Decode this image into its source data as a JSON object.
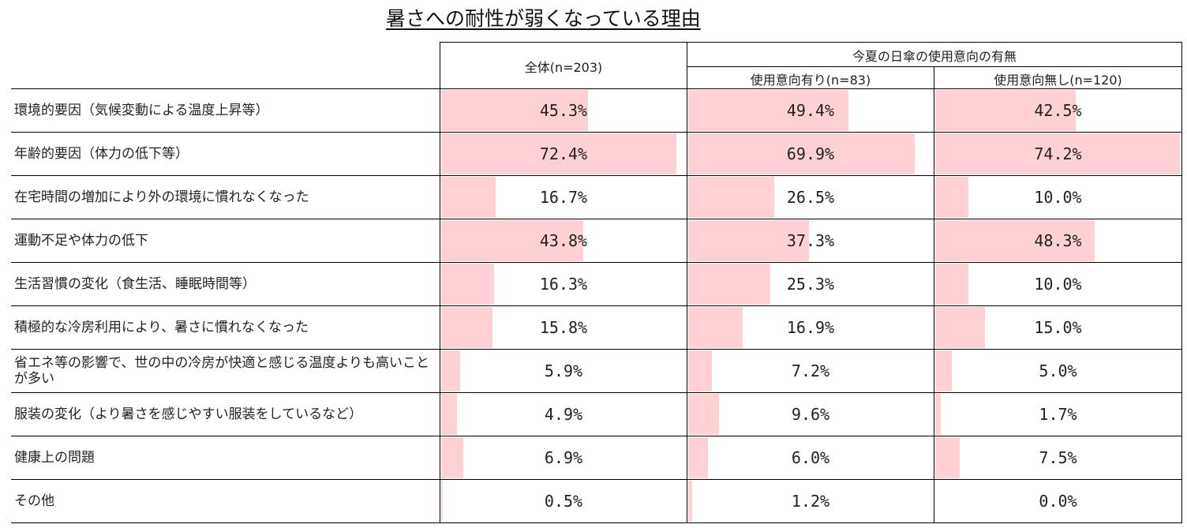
{
  "title": "暑さへの耐性が弱くなっている理由",
  "header": {
    "group_label": "今夏の日傘の使用意向の有無",
    "columns": [
      "全体(n=203)",
      "使用意向有り(n=83)",
      "使用意向無し(n=120)"
    ]
  },
  "colors": {
    "bar": "#ffd1d4",
    "grid": "#000000"
  },
  "chart_data": {
    "type": "table",
    "unit": "%",
    "categories": [
      "環境的要因（気候変動による温度上昇等）",
      "年齢的要因（体力の低下等）",
      "在宅時間の増加により外の環境に慣れなくなった",
      "運動不足や体力の低下",
      "生活習慣の変化（食生活、睡眠時間等）",
      "積極的な冷房利用により、暑さに慣れなくなった",
      "省エネ等の影響で、世の中の冷房が快適と感じる温度よりも高いことが多い",
      "服装の変化（より暑さを感じやすい服装をしているなど）",
      "健康上の問題",
      "その他"
    ],
    "series": [
      {
        "name": "全体(n=203)",
        "values": [
          45.3,
          72.4,
          16.7,
          43.8,
          16.3,
          15.8,
          5.9,
          4.9,
          6.9,
          0.5
        ],
        "labels": [
          "45.3%",
          "72.4%",
          "16.7%",
          "43.8%",
          "16.3%",
          "15.8%",
          "5.9%",
          "4.9%",
          "6.9%",
          "0.5%"
        ]
      },
      {
        "name": "使用意向有り(n=83)",
        "values": [
          49.4,
          69.9,
          26.5,
          37.3,
          25.3,
          16.9,
          7.2,
          9.6,
          6.0,
          1.2
        ],
        "labels": [
          "49.4%",
          "69.9%",
          "26.5%",
          "37.3%",
          "25.3%",
          "16.9%",
          "7.2%",
          "9.6%",
          "6.0%",
          "1.2%"
        ]
      },
      {
        "name": "使用意向無し(n=120)",
        "values": [
          42.5,
          74.2,
          10.0,
          48.3,
          10.0,
          15.0,
          5.0,
          1.7,
          7.5,
          0.0
        ],
        "labels": [
          "42.5%",
          "74.2%",
          "10.0%",
          "48.3%",
          "10.0%",
          "15.0%",
          "5.0%",
          "1.7%",
          "7.5%",
          "0.0%"
        ]
      }
    ],
    "max": 74.2
  }
}
